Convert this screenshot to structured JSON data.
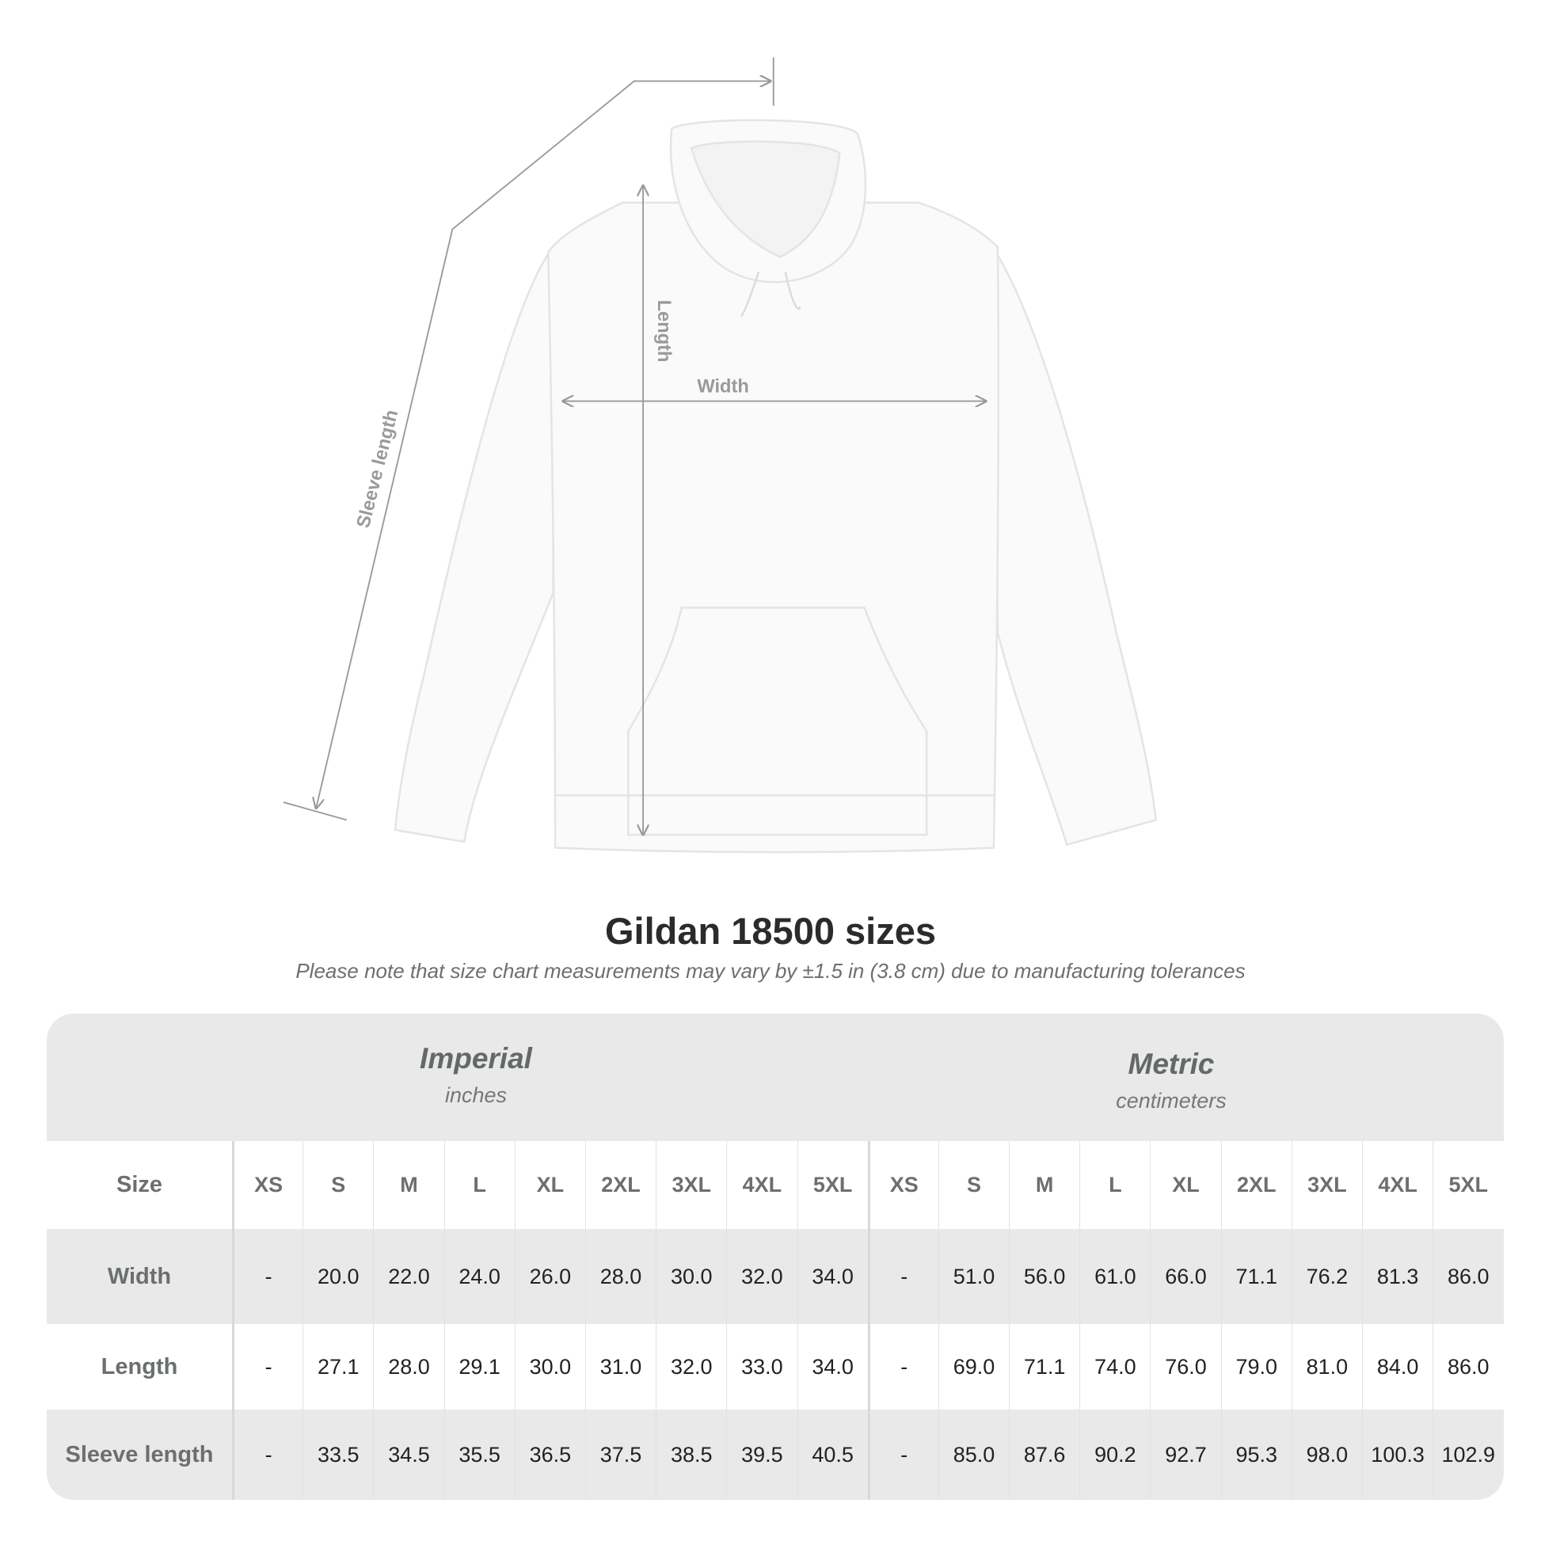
{
  "diagram": {
    "labels": {
      "sleeve": "Sleeve length",
      "length": "Length",
      "width": "Width"
    },
    "line_color": "#9a9a9a",
    "garment_color": "#fafafa"
  },
  "title": "Gildan 18500 sizes",
  "subtitle": "Please note that size chart measurements may vary by ±1.5 in (3.8 cm) due to manufacturing tolerances",
  "table": {
    "imperial": {
      "title": "Imperial",
      "unit": "inches"
    },
    "metric": {
      "title": "Metric",
      "unit": "centimeters"
    },
    "size_label": "Size",
    "imperial_sizes": [
      "XS",
      "S",
      "M",
      "L",
      "XL",
      "2XL",
      "3XL",
      "4XL",
      "5XL"
    ],
    "metric_sizes": [
      "XS",
      "S",
      "M",
      "L",
      "XL",
      "2XL",
      "3XL",
      "4XL",
      "5XL"
    ],
    "rows": [
      {
        "label": "Width",
        "imperial": [
          "-",
          "20.0",
          "22.0",
          "24.0",
          "26.0",
          "28.0",
          "30.0",
          "32.0",
          "34.0"
        ],
        "metric": [
          "-",
          "51.0",
          "56.0",
          "61.0",
          "66.0",
          "71.1",
          "76.2",
          "81.3",
          "86.0"
        ]
      },
      {
        "label": "Length",
        "imperial": [
          "-",
          "27.1",
          "28.0",
          "29.1",
          "30.0",
          "31.0",
          "32.0",
          "33.0",
          "34.0"
        ],
        "metric": [
          "-",
          "69.0",
          "71.1",
          "74.0",
          "76.0",
          "79.0",
          "81.0",
          "84.0",
          "86.0"
        ]
      },
      {
        "label": "Sleeve length",
        "imperial": [
          "-",
          "33.5",
          "34.5",
          "35.5",
          "36.5",
          "37.5",
          "38.5",
          "39.5",
          "40.5"
        ],
        "metric": [
          "-",
          "85.0",
          "87.6",
          "90.2",
          "92.7",
          "95.3",
          "98.0",
          "100.3",
          "102.9"
        ]
      }
    ],
    "band_color": "#e9e9e9"
  }
}
